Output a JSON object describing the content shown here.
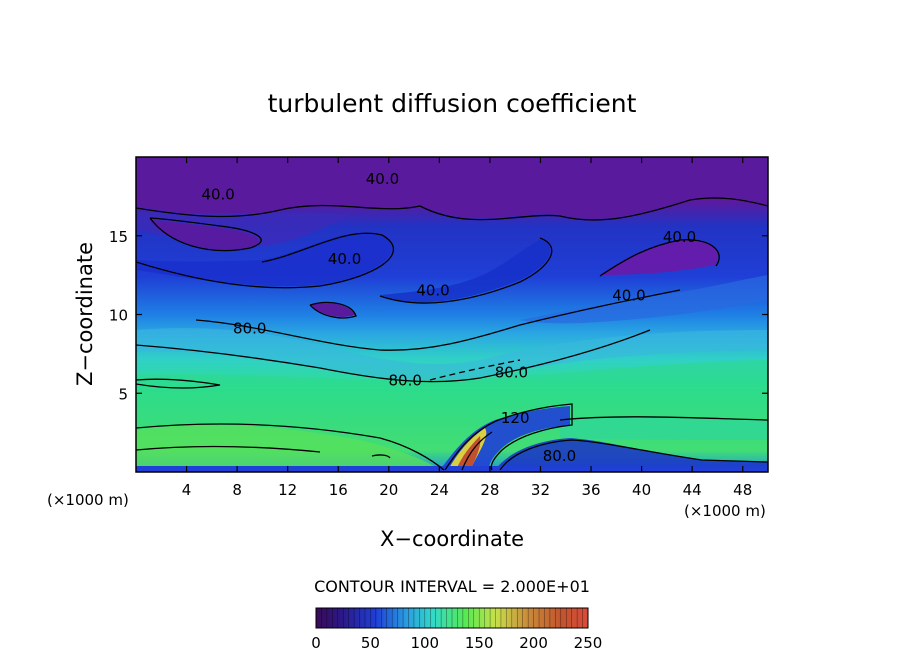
{
  "chart_data": {
    "type": "heatmap",
    "title": "turbulent diffusion coefficient",
    "xlabel": "X−coordinate",
    "ylabel": "Z−coordinate",
    "x_unit_left": "(×1000 m)",
    "x_unit_right": "(×1000 m)",
    "xlim": [
      0,
      50
    ],
    "ylim": [
      0,
      20
    ],
    "x_ticks": [
      4,
      8,
      12,
      16,
      20,
      24,
      28,
      32,
      36,
      40,
      44,
      48
    ],
    "x_tick_labels": [
      "4",
      "8",
      "12",
      "16",
      "20",
      "24",
      "28",
      "32",
      "36",
      "40",
      "44",
      "48"
    ],
    "y_ticks": [
      5,
      10,
      15
    ],
    "y_tick_labels": [
      "5",
      "10",
      "15"
    ],
    "contour_interval_label": "CONTOUR INTERVAL = 2.000E+01",
    "contour_labels": [
      {
        "text": "40.0",
        "x": 6.5,
        "z": 17.3
      },
      {
        "text": "40.0",
        "x": 19.5,
        "z": 18.3
      },
      {
        "text": "40.0",
        "x": 16.5,
        "z": 13.2
      },
      {
        "text": "40.0",
        "x": 23.5,
        "z": 11.2
      },
      {
        "text": "40.0",
        "x": 43.0,
        "z": 14.6
      },
      {
        "text": "40.0",
        "x": 39.0,
        "z": 10.9
      },
      {
        "text": "80.0",
        "x": 9.0,
        "z": 8.8
      },
      {
        "text": "80.0",
        "x": 21.3,
        "z": 5.5
      },
      {
        "text": "80.0",
        "x": 29.7,
        "z": 6.0
      },
      {
        "text": "120",
        "x": 30.0,
        "z": 3.1
      },
      {
        "text": "80.0",
        "x": 33.5,
        "z": 0.7
      }
    ],
    "colorbar": {
      "min": 0,
      "max": 250,
      "tick_labels": [
        "0",
        "50",
        "100",
        "150",
        "200",
        "250"
      ],
      "tick_values": [
        0,
        50,
        100,
        150,
        200,
        250
      ],
      "colors": [
        "#3a0a57",
        "#2a1a8a",
        "#1f3fd6",
        "#2a9be0",
        "#33d9c8",
        "#56ea52",
        "#c7e04a",
        "#c98a3a",
        "#c2552e",
        "#d84a3a"
      ]
    }
  }
}
